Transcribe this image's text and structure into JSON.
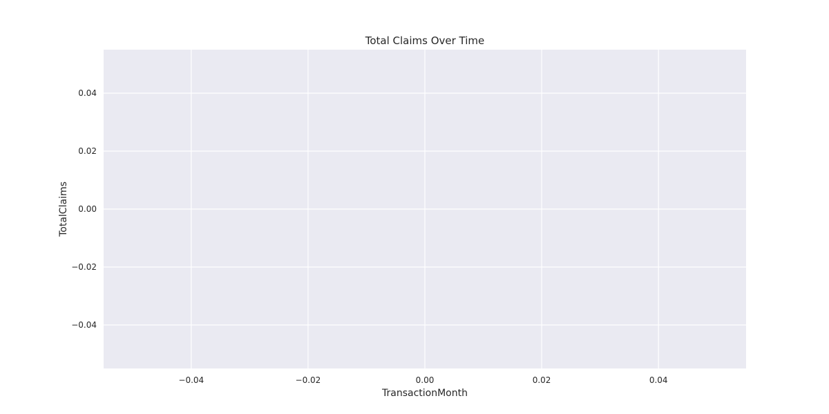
{
  "chart_data": {
    "type": "line",
    "title": "Total Claims Over Time",
    "xlabel": "TransactionMonth",
    "ylabel": "TotalClaims",
    "xlim": [
      -0.055,
      0.055
    ],
    "ylim": [
      -0.055,
      0.055
    ],
    "xticks": [
      -0.04,
      -0.02,
      0.0,
      0.02,
      0.04
    ],
    "xtick_labels": [
      "−0.04",
      "−0.02",
      "0.00",
      "0.02",
      "0.04"
    ],
    "yticks": [
      0.04,
      0.02,
      0.0,
      -0.02,
      -0.04
    ],
    "ytick_labels": [
      "0.04",
      "0.02",
      "0.00",
      "−0.02",
      "−0.04"
    ],
    "grid": true,
    "series": [
      {
        "x": [],
        "y": []
      }
    ],
    "colors": {
      "plot_background": "#eaeaf2",
      "grid": "#ffffff",
      "text": "#262626",
      "line": "#4c72b0"
    }
  }
}
